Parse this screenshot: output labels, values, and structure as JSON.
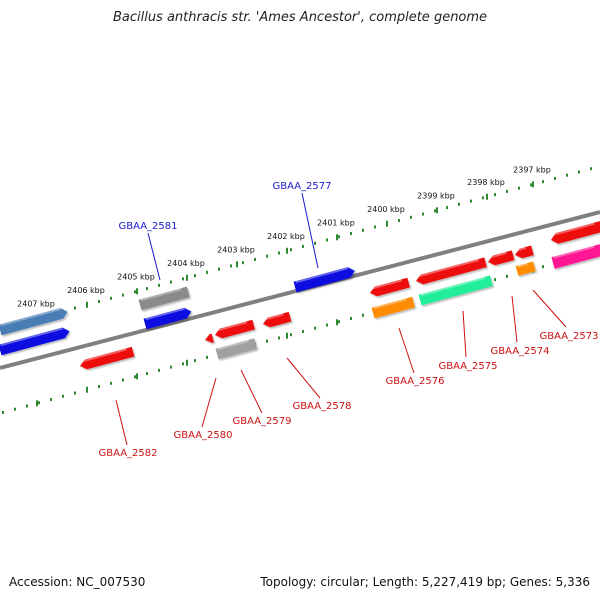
{
  "title": "Bacillus anthracis str. 'Ames Ancestor', complete genome",
  "footer": {
    "accession": "Accession: NC_007530",
    "summary": "Topology: circular; Length: 5,227,419 bp; Genes: 5,336"
  },
  "ruler": {
    "labels": [
      "2407 kbp",
      "2406 kbp",
      "2405 kbp",
      "2404 kbp",
      "2403 kbp",
      "2402 kbp",
      "2401 kbp",
      "2400 kbp",
      "2399 kbp",
      "2398 kbp",
      "2397 kbp"
    ]
  },
  "colors": {
    "backbone": "#808080",
    "tick": "#2e8b2e",
    "label_forward": "#1a1acc",
    "label_reverse": "#cc1111"
  },
  "genes": [
    {
      "id": "GBAA_2581",
      "strand": "forward",
      "color": "#8a8a8a"
    },
    {
      "id": "GBAA_2577",
      "strand": "forward",
      "color": "#1010e0"
    },
    {
      "id": "GBAA_2582",
      "strand": "reverse",
      "color": "#ee1111"
    },
    {
      "id": "GBAA_2580",
      "strand": "reverse",
      "color": "#ee1111"
    },
    {
      "id": "GBAA_2579",
      "strand": "reverse",
      "color": "#a0a0a0"
    },
    {
      "id": "GBAA_2578",
      "strand": "reverse",
      "color": "#ee1111"
    },
    {
      "id": "GBAA_2576",
      "strand": "reverse",
      "color": "#ff8c00"
    },
    {
      "id": "GBAA_2575",
      "strand": "reverse",
      "color": "#22ee99"
    },
    {
      "id": "GBAA_2574",
      "strand": "reverse",
      "color": "#ff8c00"
    },
    {
      "id": "GBAA_2573",
      "strand": "reverse",
      "color": "#ff1493"
    }
  ]
}
